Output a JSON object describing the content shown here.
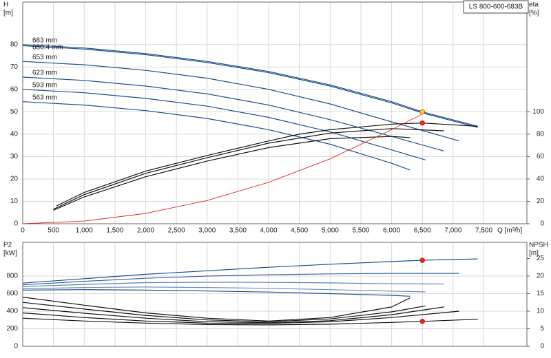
{
  "chart_data": [
    {
      "type": "line",
      "title": "LS 800-600-683B",
      "ylabel": "H",
      "yunit": "[m]",
      "y2label": "eta",
      "y2unit": "[%]",
      "xlabel": "Q [m³/h]",
      "xlim": [
        0,
        8200
      ],
      "ylim": [
        0,
        99
      ],
      "y2lim": [
        0,
        198
      ],
      "grid": true,
      "xtick_labels": true,
      "xticks": [
        0,
        500,
        {
          "value": 1000,
          "label": "1,000"
        },
        {
          "value": 1500,
          "label": "1,500"
        },
        {
          "value": 2000,
          "label": "2,000"
        },
        {
          "value": 2500,
          "label": "2,500"
        },
        {
          "value": 3000,
          "label": "3,000"
        },
        {
          "value": 3500,
          "label": "3,500"
        },
        {
          "value": 4000,
          "label": "4,000"
        },
        {
          "value": 4500,
          "label": "4,500"
        },
        {
          "value": 5000,
          "label": "5,000"
        },
        {
          "value": 5500,
          "label": "5,500"
        },
        {
          "value": 6000,
          "label": "6,000"
        },
        {
          "value": 6500,
          "label": "6,500"
        },
        {
          "value": 7000,
          "label": "7,000"
        },
        {
          "value": 7500,
          "label": "7,500"
        }
      ],
      "yticks": [
        0,
        10,
        20,
        30,
        40,
        50,
        60,
        70,
        80
      ],
      "y2ticks": [
        0,
        20,
        40,
        60,
        80,
        100
      ],
      "series": [
        {
          "name": "683 mm",
          "color": "#1f4e8c",
          "x": [
            0,
            1000,
            2000,
            3000,
            4000,
            5000,
            6000,
            6500,
            7400
          ],
          "values": [
            80,
            78.5,
            76,
            72.5,
            68,
            62,
            54.5,
            50,
            43.5
          ]
        },
        {
          "name": "680.4 mm",
          "color": "#1f4e8c",
          "x": [
            0,
            1000,
            2000,
            3000,
            4000,
            5000,
            6000,
            6500,
            7400
          ],
          "values": [
            79.5,
            78,
            75.5,
            72,
            67.5,
            61.5,
            54,
            49.5,
            43
          ]
        },
        {
          "name": "653 mm",
          "color": "#1f4e8c",
          "x": [
            0,
            1000,
            2000,
            3000,
            4000,
            5000,
            6000,
            7100
          ],
          "values": [
            72.5,
            71,
            68.5,
            65,
            60,
            53.5,
            45.5,
            37
          ]
        },
        {
          "name": "623 mm",
          "color": "#1f4e8c",
          "x": [
            0,
            1000,
            2000,
            3000,
            4000,
            5000,
            6000,
            6850
          ],
          "values": [
            65.5,
            64,
            61.5,
            58,
            53,
            46.5,
            39,
            32.5
          ]
        },
        {
          "name": "593 mm",
          "color": "#1f4e8c",
          "x": [
            0,
            1000,
            2000,
            3000,
            4000,
            5000,
            6000,
            6550
          ],
          "values": [
            60,
            58.5,
            56,
            52.5,
            47.5,
            41,
            33,
            28.5
          ]
        },
        {
          "name": "563 mm",
          "color": "#1f4e8c",
          "x": [
            0,
            1000,
            2000,
            3000,
            4000,
            5000,
            6000,
            6300
          ],
          "values": [
            54.5,
            53,
            50.5,
            47,
            42,
            35.5,
            27,
            24
          ]
        },
        {
          "color": "#111111",
          "axis": "y2",
          "x": [
            550,
            1000,
            2000,
            3000,
            4000,
            4500,
            5000,
            6000,
            6500,
            7400
          ],
          "values": [
            16,
            28,
            47,
            61,
            74,
            80,
            84,
            89,
            90,
            87
          ]
        },
        {
          "color": "#111111",
          "axis": "y2",
          "x": [
            500,
            1000,
            2000,
            3000,
            4000,
            5000,
            6000,
            6850
          ],
          "values": [
            13,
            26,
            45,
            59,
            72,
            81,
            85,
            83
          ]
        },
        {
          "color": "#111111",
          "axis": "y2",
          "x": [
            500,
            1000,
            2000,
            3000,
            4000,
            5000,
            6000,
            6300
          ],
          "values": [
            12,
            24,
            42,
            56,
            68,
            76,
            78,
            77
          ]
        },
        {
          "color": "#e8211d",
          "x": [
            0,
            1000,
            2000,
            3000,
            4000,
            5000,
            6000,
            6500
          ],
          "values": [
            0,
            1.2,
            4.6,
            10.4,
            18.5,
            29,
            42,
            49
          ]
        },
        {
          "color": "#ffd200",
          "marker": true,
          "x": [
            6500
          ],
          "values": [
            50
          ]
        },
        {
          "color": "#e8211d",
          "marker": true,
          "axis": "y2",
          "x": [
            6500
          ],
          "values": [
            90
          ]
        }
      ]
    },
    {
      "type": "line",
      "ylabel": "P2",
      "yunit": "[kW]",
      "y2label": "NPSH",
      "y2unit": "[m]",
      "xlim": [
        0,
        8200
      ],
      "ylim": [
        0,
        1184
      ],
      "y2lim": [
        0,
        29.6
      ],
      "grid": true,
      "xtick_labels": false,
      "xticks": [
        0,
        500,
        1000,
        1500,
        2000,
        2500,
        3000,
        3500,
        4000,
        4500,
        5000,
        5500,
        6000,
        6500,
        7000,
        7500
      ],
      "yticks": [
        0,
        200,
        400,
        600,
        800
      ],
      "y2ticks": [
        0,
        5,
        10,
        15,
        20,
        25
      ],
      "series": [
        {
          "color": "#1f4e8c",
          "x": [
            0,
            1000,
            2000,
            3000,
            4000,
            5000,
            6000,
            6500,
            7400
          ],
          "values": [
            720,
            770,
            820,
            860,
            900,
            935,
            965,
            980,
            995
          ]
        },
        {
          "color": "#3a66a0",
          "x": [
            0,
            1000,
            2000,
            3000,
            4000,
            5000,
            6000,
            7100
          ],
          "values": [
            700,
            740,
            775,
            800,
            815,
            825,
            830,
            830
          ]
        },
        {
          "color": "#5a7fb0",
          "x": [
            0,
            1000,
            2000,
            3000,
            4000,
            5000,
            6000,
            6850
          ],
          "values": [
            680,
            705,
            725,
            730,
            728,
            722,
            712,
            710
          ]
        },
        {
          "color": "#7090bb",
          "x": [
            0,
            1000,
            2000,
            3000,
            4000,
            5000,
            6000,
            6550
          ],
          "values": [
            655,
            670,
            675,
            670,
            660,
            645,
            628,
            620
          ]
        },
        {
          "color": "#1f4e8c",
          "x": [
            0,
            1000,
            2000,
            3000,
            4000,
            5000,
            6000,
            6300
          ],
          "values": [
            640,
            645,
            640,
            630,
            618,
            600,
            580,
            570
          ]
        },
        {
          "color": "#111111",
          "axis": "y2",
          "x": [
            0,
            1000,
            2000,
            3000,
            4000,
            5000,
            6000,
            6500,
            7400
          ],
          "values": [
            8,
            7.2,
            6.6,
            6.2,
            6.1,
            6.3,
            6.8,
            7.1,
            7.7
          ]
        },
        {
          "color": "#111111",
          "axis": "y2",
          "x": [
            0,
            1000,
            2000,
            3000,
            4000,
            5000,
            6000,
            7100
          ],
          "values": [
            9.5,
            8.2,
            7.2,
            6.6,
            6.5,
            7,
            8.2,
            10
          ]
        },
        {
          "color": "#111111",
          "axis": "y2",
          "x": [
            0,
            1000,
            2000,
            3000,
            4000,
            5000,
            6000,
            6850
          ],
          "values": [
            11,
            9.4,
            8,
            7,
            6.7,
            7.3,
            9,
            11.2
          ]
        },
        {
          "color": "#111111",
          "axis": "y2",
          "x": [
            0,
            1000,
            2000,
            3000,
            4000,
            5000,
            6000,
            6550
          ],
          "values": [
            12.5,
            10.6,
            8.8,
            7.5,
            7,
            7.8,
            9.8,
            11.5
          ]
        },
        {
          "color": "#111111",
          "axis": "y2",
          "x": [
            0,
            1000,
            2000,
            3000,
            4000,
            5000,
            6000,
            6300
          ],
          "values": [
            14,
            11.7,
            9.5,
            8,
            7.2,
            8.2,
            11.2,
            13.8
          ]
        },
        {
          "color": "#e8211d",
          "marker": true,
          "x": [
            6500
          ],
          "values": [
            980
          ]
        },
        {
          "color": "#e8211d",
          "marker": true,
          "axis": "y2",
          "x": [
            6500
          ],
          "values": [
            7.1
          ]
        }
      ]
    }
  ]
}
